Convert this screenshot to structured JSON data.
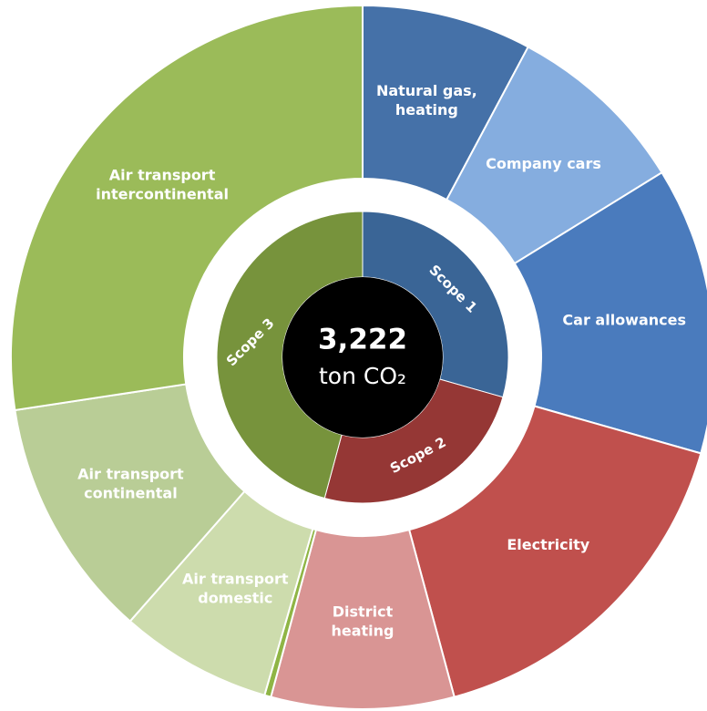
{
  "chart_data": {
    "type": "sunburst",
    "total": "3,222",
    "unit": "ton CO₂",
    "groups": [
      {
        "name": "Scope 1",
        "color": "#3a6596",
        "value": 29.4
      },
      {
        "name": "Scope 2",
        "color": "#953735",
        "value": 24.8
      },
      {
        "name": "Scope 3",
        "color": "#77933c",
        "value": 45.8
      }
    ],
    "categories": [
      "Natural gas,\nheating",
      "Company cars",
      "Car allowances",
      "Electricity",
      "District\nheating",
      null,
      "Air transport\ndomestic",
      "Air transport\ncontinental",
      "Air transport\nintercontinental"
    ],
    "values": [
      7.8,
      8.4,
      13.2,
      16.4,
      8.4,
      0.3,
      7.0,
      11.1,
      27.4
    ],
    "colors": [
      "#4571a8",
      "#85addf",
      "#4a7bbd",
      "#c0504d",
      "#d99594",
      "#8fb545",
      "#cddcad",
      "#b9cd96",
      "#9bbb59"
    ]
  }
}
